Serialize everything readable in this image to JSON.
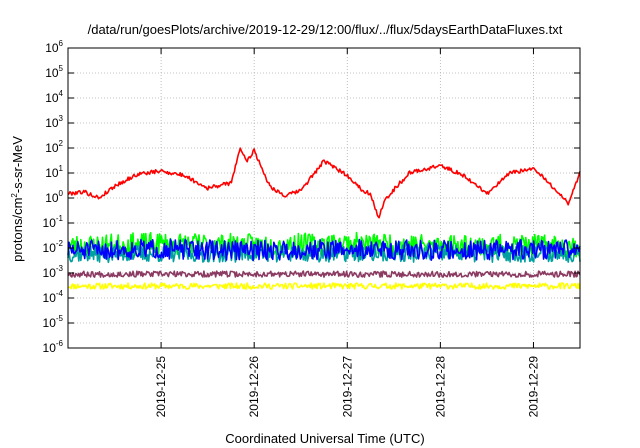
{
  "chart_data": {
    "type": "line",
    "title": "/data/run/goesPlots/archive/2019-12-29/12:00/flux/../flux/5daysEarthDataFluxes.txt",
    "xlabel": "Coordinated Universal Time (UTC)",
    "ylabel": {
      "base": "protons/cm",
      "sup": "2",
      "rest": "-s-sr-MeV"
    },
    "x_range": [
      "2019-12-24T00:00",
      "2019-12-29T12:00"
    ],
    "xticks": [
      {
        "t": "2019-12-25T00:00",
        "label": "2019-12-25"
      },
      {
        "t": "2019-12-26T00:00",
        "label": "2019-12-26"
      },
      {
        "t": "2019-12-27T00:00",
        "label": "2019-12-27"
      },
      {
        "t": "2019-12-28T00:00",
        "label": "2019-12-28"
      },
      {
        "t": "2019-12-29T00:00",
        "label": "2019-12-29"
      }
    ],
    "y_scale": "log",
    "ylim": [
      1e-06,
      1000000.0
    ],
    "yticks": [
      {
        "value": 1e-06,
        "base": "10",
        "exp": "-6"
      },
      {
        "value": 1e-05,
        "base": "10",
        "exp": "-5"
      },
      {
        "value": 0.0001,
        "base": "10",
        "exp": "-4"
      },
      {
        "value": 0.001,
        "base": "10",
        "exp": "-3"
      },
      {
        "value": 0.01,
        "base": "10",
        "exp": "-2"
      },
      {
        "value": 0.1,
        "base": "10",
        "exp": "-1"
      },
      {
        "value": 1,
        "base": "10",
        "exp": "0"
      },
      {
        "value": 10,
        "base": "10",
        "exp": "1"
      },
      {
        "value": 100,
        "base": "10",
        "exp": "2"
      },
      {
        "value": 1000,
        "base": "10",
        "exp": "3"
      },
      {
        "value": 10000,
        "base": "10",
        "exp": "4"
      },
      {
        "value": 100000,
        "base": "10",
        "exp": "5"
      },
      {
        "value": 1000000,
        "base": "10",
        "exp": "6"
      }
    ],
    "grid": true,
    "series": [
      {
        "color": "#ffff00",
        "style": "noisy",
        "seed": 11,
        "amp": 0.12,
        "points": [
          [
            "2019-12-24T00:00",
            0.0003
          ],
          [
            "2019-12-26T00:00",
            0.0003
          ],
          [
            "2019-12-28T00:00",
            0.0003
          ],
          [
            "2019-12-29T12:00",
            0.0003
          ]
        ]
      },
      {
        "color": "#00ff00",
        "style": "noisy",
        "seed": 23,
        "amp": 0.45,
        "points": [
          [
            "2019-12-24T00:00",
            0.012
          ],
          [
            "2019-12-25T00:00",
            0.015
          ],
          [
            "2019-12-26T00:00",
            0.013
          ],
          [
            "2019-12-27T00:00",
            0.015
          ],
          [
            "2019-12-28T00:00",
            0.013
          ],
          [
            "2019-12-29T12:00",
            0.012
          ]
        ]
      },
      {
        "color": "#00a0a0",
        "style": "noisy",
        "seed": 37,
        "amp": 0.35,
        "points": [
          [
            "2019-12-24T00:00",
            0.006
          ],
          [
            "2019-12-26T00:00",
            0.006
          ],
          [
            "2019-12-28T00:00",
            0.006
          ],
          [
            "2019-12-29T12:00",
            0.006
          ]
        ]
      },
      {
        "color": "#0000ff",
        "style": "noisy",
        "seed": 51,
        "amp": 0.4,
        "points": [
          [
            "2019-12-24T00:00",
            0.008
          ],
          [
            "2019-12-25T00:00",
            0.009
          ],
          [
            "2019-12-26T00:00",
            0.008
          ],
          [
            "2019-12-27T00:00",
            0.009
          ],
          [
            "2019-12-28T00:00",
            0.008
          ],
          [
            "2019-12-29T12:00",
            0.009
          ]
        ]
      },
      {
        "color": "#8b3a62",
        "style": "noisy",
        "seed": 67,
        "amp": 0.12,
        "points": [
          [
            "2019-12-24T00:00",
            0.0009
          ],
          [
            "2019-12-26T00:00",
            0.0009
          ],
          [
            "2019-12-28T00:00",
            0.0009
          ],
          [
            "2019-12-29T12:00",
            0.0009
          ]
        ]
      },
      {
        "color": "#ff0000",
        "style": "noisy",
        "seed": 79,
        "amp": 0.08,
        "points": [
          [
            "2019-12-24T00:00",
            1.5
          ],
          [
            "2019-12-24T04:00",
            1.8
          ],
          [
            "2019-12-24T08:00",
            1.0
          ],
          [
            "2019-12-24T12:00",
            3.0
          ],
          [
            "2019-12-24T18:00",
            9.0
          ],
          [
            "2019-12-25T00:00",
            12
          ],
          [
            "2019-12-25T06:00",
            8.0
          ],
          [
            "2019-12-25T12:00",
            2.5
          ],
          [
            "2019-12-25T18:00",
            4.0
          ],
          [
            "2019-12-25T20:30",
            100
          ],
          [
            "2019-12-25T22:00",
            30
          ],
          [
            "2019-12-26T00:00",
            80
          ],
          [
            "2019-12-26T04:00",
            3.0
          ],
          [
            "2019-12-26T08:00",
            1.2
          ],
          [
            "2019-12-26T12:00",
            2.0
          ],
          [
            "2019-12-26T18:00",
            30
          ],
          [
            "2019-12-27T00:00",
            8.0
          ],
          [
            "2019-12-27T04:00",
            2.0
          ],
          [
            "2019-12-27T06:00",
            1.5
          ],
          [
            "2019-12-27T08:00",
            0.15
          ],
          [
            "2019-12-27T10:00",
            1.0
          ],
          [
            "2019-12-27T16:00",
            10
          ],
          [
            "2019-12-28T00:00",
            20
          ],
          [
            "2019-12-28T06:00",
            8.0
          ],
          [
            "2019-12-28T12:00",
            1.5
          ],
          [
            "2019-12-28T18:00",
            10
          ],
          [
            "2019-12-29T00:00",
            15
          ],
          [
            "2019-12-29T06:00",
            2.0
          ],
          [
            "2019-12-29T09:00",
            0.6
          ],
          [
            "2019-12-29T12:00",
            10
          ]
        ]
      }
    ]
  }
}
